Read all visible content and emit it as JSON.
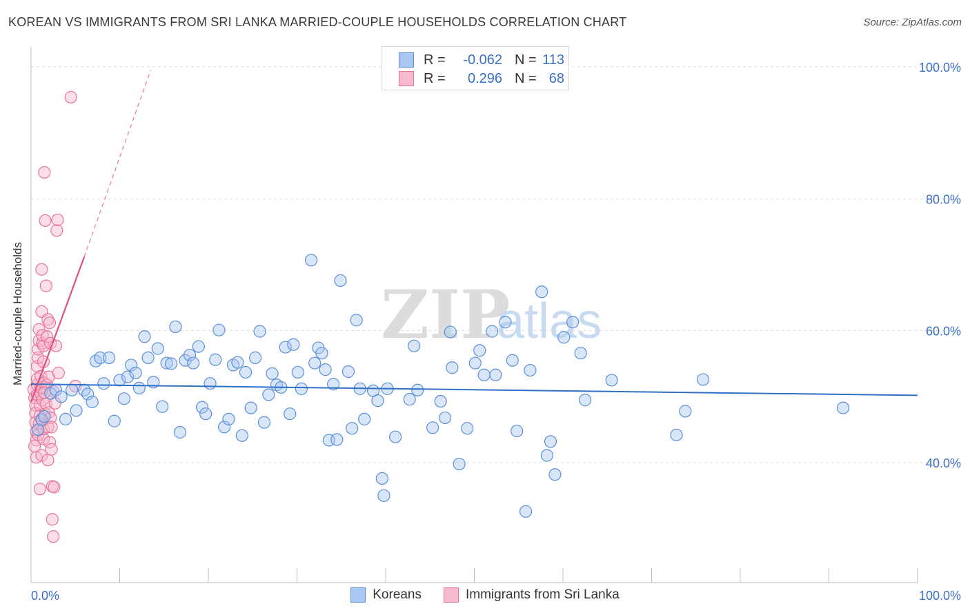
{
  "title": "KOREAN VS IMMIGRANTS FROM SRI LANKA MARRIED-COUPLE HOUSEHOLDS CORRELATION CHART",
  "source": "Source: ZipAtlas.com",
  "watermark": {
    "zip": "ZIP",
    "atlas": "atlas"
  },
  "legend": {
    "rows": [
      {
        "r_label": "R =",
        "r_value": "-0.062",
        "n_label": "N =",
        "n_value": "113"
      },
      {
        "r_label": "R =",
        "r_value": "0.296",
        "n_label": "N =",
        "n_value": "68"
      }
    ]
  },
  "colors": {
    "blue_fill": "#a9c7f0",
    "blue_stroke": "#5b8fd9",
    "blue_line": "#2e6fc7",
    "pink_fill": "#f7b9cc",
    "pink_stroke": "#e8749a",
    "pink_line": "#e0507e",
    "grid": "#dcdcdc",
    "tick_text": "#3a6fc4"
  },
  "chart_data": {
    "type": "scatter",
    "title": "KOREAN VS IMMIGRANTS FROM SRI LANKA MARRIED-COUPLE HOUSEHOLDS CORRELATION CHART",
    "xlabel": "",
    "ylabel": "Married-couple Households",
    "xlim": [
      0,
      100
    ],
    "ylim": [
      20,
      100
    ],
    "x_tick_labels": [
      "0.0%",
      "100.0%"
    ],
    "y_ticks": [
      40,
      60,
      80,
      100
    ],
    "y_tick_labels": [
      "40.0%",
      "60.0%",
      "80.0%",
      "100.0%"
    ],
    "grid": true,
    "legend_position": "bottom",
    "series": [
      {
        "name": "Koreans",
        "color": "#a9c7f0",
        "trend": {
          "x": [
            0,
            100
          ],
          "y": [
            51.9,
            50.2
          ]
        },
        "points": [
          [
            0.8,
            45
          ],
          [
            1.2,
            46.5
          ],
          [
            1.5,
            47
          ],
          [
            2.2,
            50.5
          ],
          [
            2.8,
            51
          ],
          [
            3.4,
            50
          ],
          [
            3.9,
            46.6
          ],
          [
            4.6,
            51
          ],
          [
            5.1,
            47.9
          ],
          [
            6,
            51
          ],
          [
            6.4,
            50.4
          ],
          [
            6.9,
            49.2
          ],
          [
            7.3,
            55.4
          ],
          [
            7.8,
            55.9
          ],
          [
            8.2,
            52
          ],
          [
            8.8,
            55.9
          ],
          [
            9.4,
            46.3
          ],
          [
            10,
            52.5
          ],
          [
            10.5,
            49.7
          ],
          [
            10.9,
            53
          ],
          [
            11.3,
            54.8
          ],
          [
            11.8,
            53.6
          ],
          [
            12.2,
            51.3
          ],
          [
            12.8,
            59.1
          ],
          [
            13.2,
            55.9
          ],
          [
            13.8,
            52.2
          ],
          [
            14.3,
            57.3
          ],
          [
            14.8,
            48.5
          ],
          [
            15.3,
            55.1
          ],
          [
            15.8,
            55
          ],
          [
            16.3,
            60.6
          ],
          [
            16.8,
            44.6
          ],
          [
            17.4,
            55.5
          ],
          [
            17.9,
            56.3
          ],
          [
            18.3,
            55.1
          ],
          [
            18.9,
            57.6
          ],
          [
            19.3,
            48.4
          ],
          [
            19.7,
            47.4
          ],
          [
            20.2,
            52
          ],
          [
            20.8,
            55.6
          ],
          [
            21.2,
            60.1
          ],
          [
            21.8,
            45.4
          ],
          [
            22.3,
            46.6
          ],
          [
            22.8,
            54.8
          ],
          [
            23.3,
            55.2
          ],
          [
            23.8,
            44.1
          ],
          [
            24.2,
            53.7
          ],
          [
            24.8,
            48.3
          ],
          [
            25.3,
            55.9
          ],
          [
            25.8,
            59.9
          ],
          [
            26.3,
            46.1
          ],
          [
            26.8,
            50.3
          ],
          [
            27.2,
            53.5
          ],
          [
            27.7,
            51.8
          ],
          [
            28.2,
            51.4
          ],
          [
            28.7,
            57.5
          ],
          [
            29.2,
            47.4
          ],
          [
            29.6,
            57.9
          ],
          [
            30.1,
            53.7
          ],
          [
            30.5,
            51.2
          ],
          [
            31.6,
            70.7
          ],
          [
            32,
            55.1
          ],
          [
            32.4,
            57.4
          ],
          [
            32.8,
            56.6
          ],
          [
            33.2,
            54.1
          ],
          [
            33.6,
            43.4
          ],
          [
            34.1,
            51.9
          ],
          [
            34.5,
            43.5
          ],
          [
            34.9,
            67.6
          ],
          [
            35.8,
            53.8
          ],
          [
            36.2,
            45.2
          ],
          [
            36.7,
            61.6
          ],
          [
            37.1,
            51.2
          ],
          [
            37.6,
            46.6
          ],
          [
            38.6,
            50.9
          ],
          [
            39.1,
            49.4
          ],
          [
            39.6,
            37.6
          ],
          [
            39.8,
            35
          ],
          [
            40.2,
            51.2
          ],
          [
            41.1,
            43.9
          ],
          [
            42.7,
            49.6
          ],
          [
            43.2,
            57.7
          ],
          [
            43.6,
            51
          ],
          [
            45.3,
            45.3
          ],
          [
            46.2,
            49.3
          ],
          [
            46.7,
            46.8
          ],
          [
            47.3,
            59.8
          ],
          [
            47.5,
            54.4
          ],
          [
            48.3,
            39.8
          ],
          [
            49.2,
            45.2
          ],
          [
            50.1,
            55.1
          ],
          [
            50.6,
            57
          ],
          [
            51.1,
            53.3
          ],
          [
            52,
            59.9
          ],
          [
            52.4,
            53.3
          ],
          [
            53.5,
            61.3
          ],
          [
            54.3,
            55.5
          ],
          [
            54.8,
            44.8
          ],
          [
            55.8,
            32.6
          ],
          [
            56.3,
            54
          ],
          [
            57.6,
            65.9
          ],
          [
            58.2,
            41.1
          ],
          [
            58.6,
            43.2
          ],
          [
            59.1,
            38.2
          ],
          [
            60.1,
            59
          ],
          [
            61.1,
            61.3
          ],
          [
            62,
            56.6
          ],
          [
            62.5,
            49.5
          ],
          [
            65.5,
            52.5
          ],
          [
            72.8,
            44.2
          ],
          [
            73.8,
            47.8
          ],
          [
            75.8,
            52.6
          ],
          [
            91.6,
            48.3
          ]
        ]
      },
      {
        "name": "Immigrants from Sri Lanka",
        "color": "#f7b9cc",
        "trend_solid": {
          "x": [
            0,
            6
          ],
          "y": [
            49.2,
            71.2
          ]
        },
        "trend_dashed": {
          "x": [
            6,
            13.5
          ],
          "y": [
            71.2,
            99.5
          ]
        },
        "points": [
          [
            0.3,
            51.1
          ],
          [
            0.4,
            49.8
          ],
          [
            0.5,
            48.7
          ],
          [
            0.5,
            47.5
          ],
          [
            0.5,
            46.1
          ],
          [
            0.6,
            44.7
          ],
          [
            0.6,
            43.4
          ],
          [
            0.6,
            40.8
          ],
          [
            0.7,
            50.3
          ],
          [
            0.7,
            51.8
          ],
          [
            0.7,
            52.7
          ],
          [
            0.7,
            54.6
          ],
          [
            0.8,
            55.9
          ],
          [
            0.8,
            57.2
          ],
          [
            0.8,
            44.2
          ],
          [
            0.9,
            58.5
          ],
          [
            0.9,
            60.2
          ],
          [
            0.9,
            45.9
          ],
          [
            1,
            47.1
          ],
          [
            1,
            48.7
          ],
          [
            1,
            36
          ],
          [
            1.1,
            50.4
          ],
          [
            1.1,
            51.4
          ],
          [
            1.1,
            53.1
          ],
          [
            1.2,
            62.9
          ],
          [
            1.2,
            69.3
          ],
          [
            1.2,
            41.1
          ],
          [
            1.2,
            46.6
          ],
          [
            1.3,
            58.1
          ],
          [
            1.3,
            49.5
          ],
          [
            1.3,
            59.3
          ],
          [
            1.4,
            43.6
          ],
          [
            1.4,
            45.1
          ],
          [
            1.4,
            55.3
          ],
          [
            1.4,
            57.7
          ],
          [
            1.5,
            84
          ],
          [
            1.5,
            52.1
          ],
          [
            1.6,
            76.7
          ],
          [
            1.6,
            47.4
          ],
          [
            1.7,
            66.8
          ],
          [
            1.7,
            48.9
          ],
          [
            1.8,
            51.8
          ],
          [
            1.8,
            59.1
          ],
          [
            1.9,
            61.7
          ],
          [
            1.9,
            45.4
          ],
          [
            1.9,
            40.4
          ],
          [
            2,
            47.6
          ],
          [
            2,
            53
          ],
          [
            2.1,
            43.1
          ],
          [
            2.1,
            61.2
          ],
          [
            2.2,
            58.1
          ],
          [
            2.2,
            46.8
          ],
          [
            2.3,
            45.4
          ],
          [
            2.3,
            42
          ],
          [
            2.4,
            36.4
          ],
          [
            2.4,
            31.4
          ],
          [
            2.5,
            28.8
          ],
          [
            2.5,
            50.8
          ],
          [
            2.6,
            36.3
          ],
          [
            2.7,
            49
          ],
          [
            2.8,
            57.7
          ],
          [
            2.9,
            75.2
          ],
          [
            3,
            76.8
          ],
          [
            3.1,
            53.6
          ],
          [
            4.5,
            95.4
          ],
          [
            5,
            51.6
          ],
          [
            1.5,
            50.6
          ],
          [
            0.4,
            42.5
          ]
        ]
      }
    ]
  }
}
